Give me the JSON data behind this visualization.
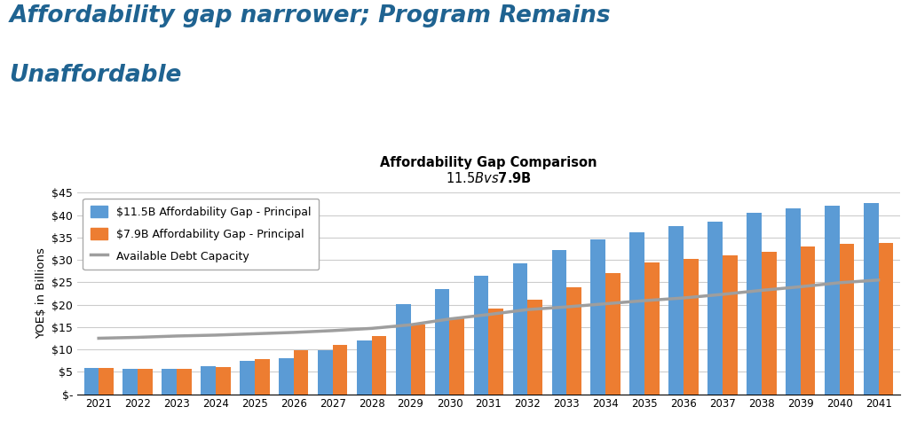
{
  "title_main_line1": "Affordability gap narrower; Program Remains",
  "title_main_line2": "Unaffordable",
  "title_chart_line1": "Affordability Gap Comparison",
  "title_chart_line2": "$11.5B vs $7.9B",
  "ylabel": "YOE$ in Billions",
  "years": [
    2021,
    2022,
    2023,
    2024,
    2025,
    2026,
    2027,
    2028,
    2029,
    2030,
    2031,
    2032,
    2033,
    2034,
    2035,
    2036,
    2037,
    2038,
    2039,
    2040,
    2041
  ],
  "blue_bars": [
    5.9,
    5.7,
    5.7,
    6.3,
    7.5,
    8.1,
    9.8,
    12.0,
    20.1,
    23.5,
    26.4,
    29.3,
    32.2,
    34.5,
    36.2,
    37.5,
    38.5,
    40.5,
    41.5,
    42.1,
    42.7
  ],
  "orange_bars": [
    5.8,
    5.7,
    5.7,
    6.1,
    7.8,
    9.8,
    11.0,
    13.0,
    15.5,
    17.1,
    19.1,
    21.1,
    23.9,
    27.1,
    29.4,
    30.2,
    31.0,
    31.8,
    33.0,
    33.5,
    33.7
  ],
  "debt_capacity": [
    12.5,
    12.7,
    13.0,
    13.2,
    13.5,
    13.8,
    14.2,
    14.7,
    15.5,
    16.8,
    17.8,
    18.9,
    19.5,
    20.2,
    20.9,
    21.5,
    22.3,
    23.2,
    24.0,
    24.9,
    25.5
  ],
  "bar_color_blue": "#5B9BD5",
  "bar_color_orange": "#ED7D31",
  "line_color_gray": "#9E9E9E",
  "title_main_color": "#1F6391",
  "background_color": "#FFFFFF",
  "ylim": [
    0,
    45
  ],
  "yticks": [
    0,
    5,
    10,
    15,
    20,
    25,
    30,
    35,
    40,
    45
  ],
  "ytick_labels": [
    "$-",
    "$5",
    "$10",
    "$15",
    "$20",
    "$25",
    "$30",
    "$35",
    "$40",
    "$45"
  ],
  "legend_blue": "$11.5B Affordability Gap - Principal",
  "legend_orange": "$7.9B Affordability Gap - Principal",
  "legend_line": "Available Debt Capacity"
}
